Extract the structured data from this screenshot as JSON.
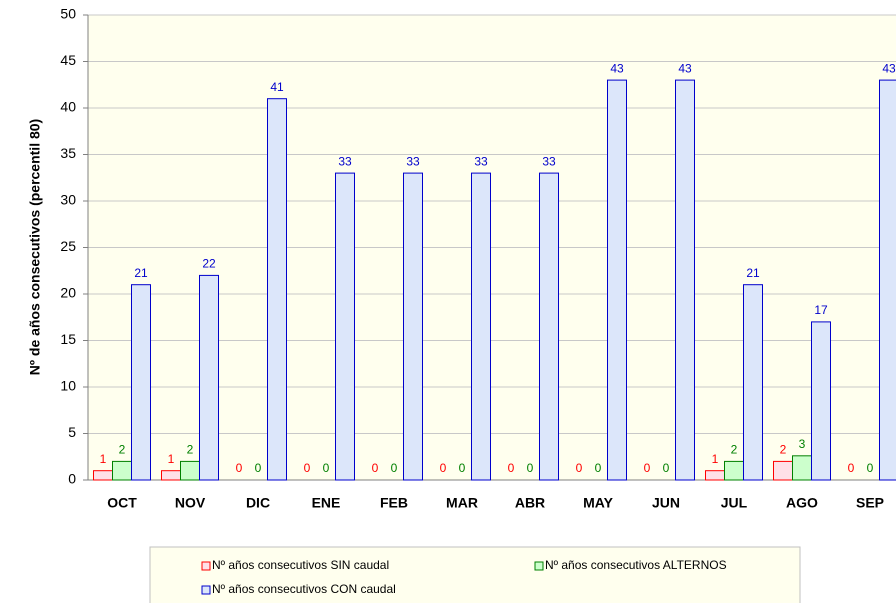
{
  "chart_data": {
    "type": "bar",
    "y_label": "Nº de años consecutivos (percentil 80)",
    "categories": [
      "OCT",
      "NOV",
      "DIC",
      "ENE",
      "FEB",
      "MAR",
      "ABR",
      "MAY",
      "JUN",
      "JUL",
      "AGO",
      "SEP"
    ],
    "series": [
      {
        "name": "Nº años consecutivos SIN caudal",
        "color": "#ff0000",
        "fill": "#ffe0e8",
        "values": [
          1,
          1,
          0,
          0,
          0,
          0,
          0,
          0,
          0,
          1,
          2,
          0
        ]
      },
      {
        "name": "Nº años consecutivos ALTERNOS",
        "color": "#008000",
        "fill": "#ccffcc",
        "values": [
          2,
          2,
          0,
          0,
          0,
          0,
          0,
          0,
          0,
          2,
          2.6,
          0
        ],
        "value_labels": [
          "2",
          "2",
          "0",
          "0",
          "0",
          "0",
          "0",
          "0",
          "0",
          "2",
          "3",
          "0"
        ]
      },
      {
        "name": "Nº años consecutivos CON caudal",
        "color": "#0000cc",
        "fill": "#dce6fa",
        "values": [
          21,
          22,
          41,
          33,
          33,
          33,
          33,
          43,
          43,
          21,
          17,
          43
        ]
      }
    ],
    "ylim": [
      0,
      50
    ],
    "yticks": [
      0,
      5,
      10,
      15,
      20,
      25,
      30,
      35,
      40,
      45,
      50
    ],
    "grid": true
  }
}
